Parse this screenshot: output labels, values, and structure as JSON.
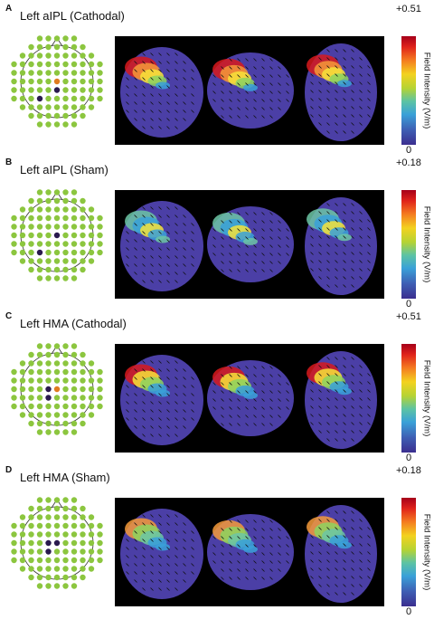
{
  "panels": [
    {
      "letter": "A",
      "title": "Left aIPL (Cathodal)",
      "max": "+0.51",
      "min": "0",
      "unit": "Field Intensity (V/m)"
    },
    {
      "letter": "B",
      "title": "Left aIPL (Sham)",
      "max": "+0.18",
      "min": "0",
      "unit": "Field Intensity (V/m)"
    },
    {
      "letter": "C",
      "title": "Left HMA (Cathodal)",
      "max": "+0.51",
      "min": "0",
      "unit": "Field Intensity (V/m)"
    },
    {
      "letter": "D",
      "title": "Left HMA (Sham)",
      "max": "+0.18",
      "min": "0",
      "unit": "Field Intensity (V/m)"
    }
  ],
  "colors": {
    "electrode": "#8cc63f",
    "anode": "#e07b1f",
    "cathode": "#2a1a4e",
    "background": "#000000"
  }
}
